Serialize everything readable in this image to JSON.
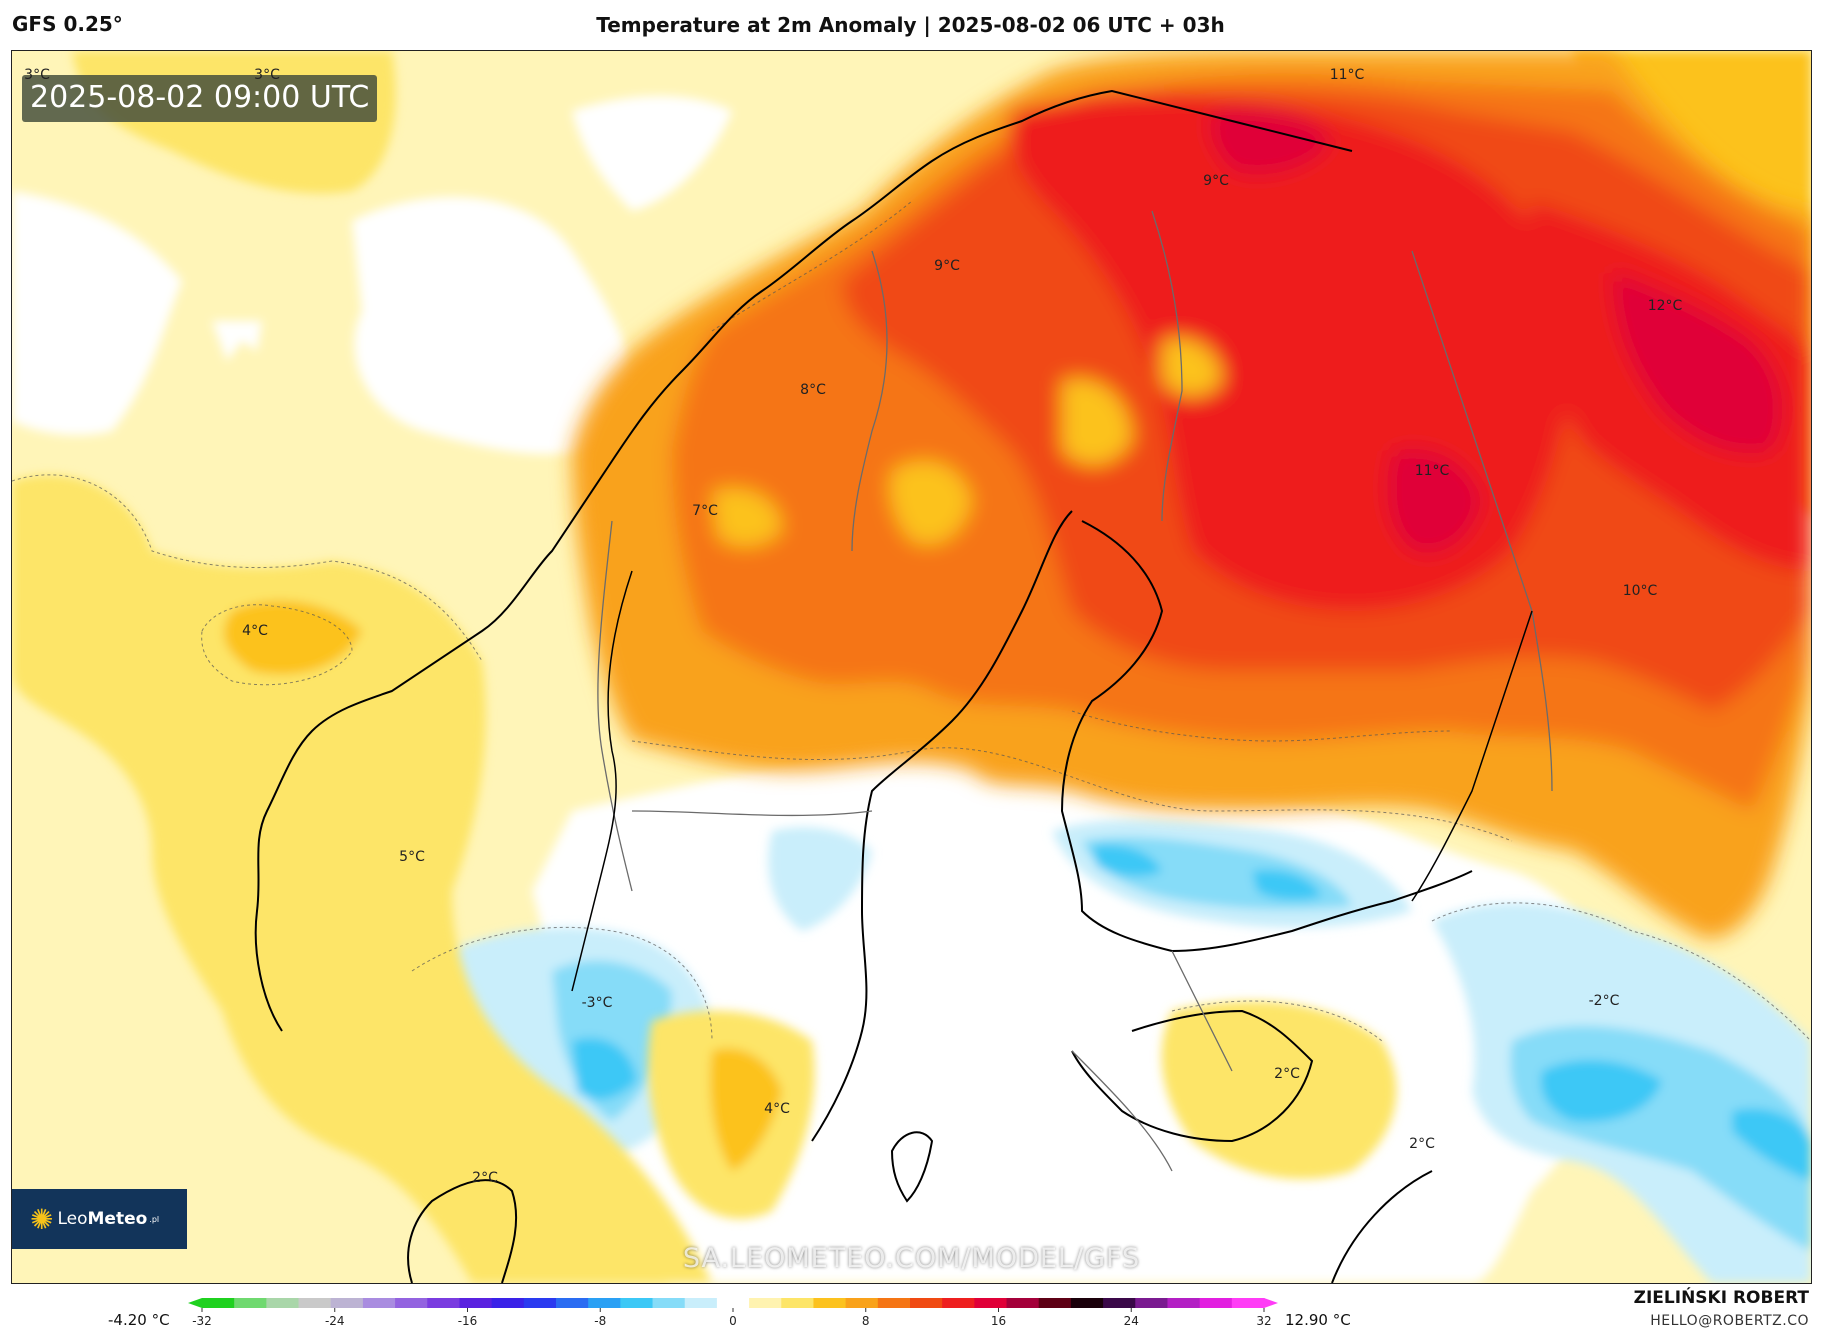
{
  "header": {
    "model": "GFS 0.25°",
    "title": "Temperature at 2m Anomaly | 2025-08-02 06 UTC + 03h"
  },
  "map": {
    "timestamp": "2025-08-02 09:00 UTC",
    "watermark": "SA.LEOMETEO.COM/MODEL/GFS",
    "logo": {
      "leo": "Leo",
      "meteo": "Meteo",
      "sup": ".pl"
    },
    "contour_labels": [
      {
        "text": "3°C"
      },
      {
        "text": "3°C"
      },
      {
        "text": "4°C"
      },
      {
        "text": "11°C"
      },
      {
        "text": "9°C"
      },
      {
        "text": "9°C"
      },
      {
        "text": "8°C"
      },
      {
        "text": "7°C"
      },
      {
        "text": "12°C"
      },
      {
        "text": "11°C"
      },
      {
        "text": "10°C"
      },
      {
        "text": "5°C"
      },
      {
        "text": "-3°C"
      },
      {
        "text": "4°C"
      },
      {
        "text": "2°C"
      },
      {
        "text": "2°C"
      },
      {
        "text": "-2°C"
      },
      {
        "text": "2°C"
      }
    ]
  },
  "colorbar": {
    "min_label": "-4.20 °C",
    "max_label": "12.90 °C",
    "ticks": [
      "-32",
      "-24",
      "-16",
      "-8",
      "0",
      "8",
      "16",
      "24",
      "32"
    ],
    "range": [
      -32,
      32
    ],
    "colors": [
      "#1fd11f",
      "#6fd96f",
      "#a9d6a9",
      "#c9c9c9",
      "#bcb3d3",
      "#a98ce0",
      "#9363e0",
      "#7a3ce0",
      "#5a22e0",
      "#3a22e8",
      "#2a3af0",
      "#2a6cf2",
      "#2aa0f4",
      "#3cc8f6",
      "#86dcf8",
      "#c9eefb",
      "#ffffff",
      "#fff3b0",
      "#fde568",
      "#fcc21e",
      "#f9a21a",
      "#f57514",
      "#f04a12",
      "#ee1f1f",
      "#e00038",
      "#a4003a",
      "#5e0015",
      "#1a000a",
      "#3a0848",
      "#7a1a90",
      "#b31fc4",
      "#e21fe0",
      "#ff3cf6"
    ]
  },
  "author": {
    "name": "ZIELIŃSKI ROBERT",
    "email": "HELLO@ROBERTZ.CO"
  }
}
